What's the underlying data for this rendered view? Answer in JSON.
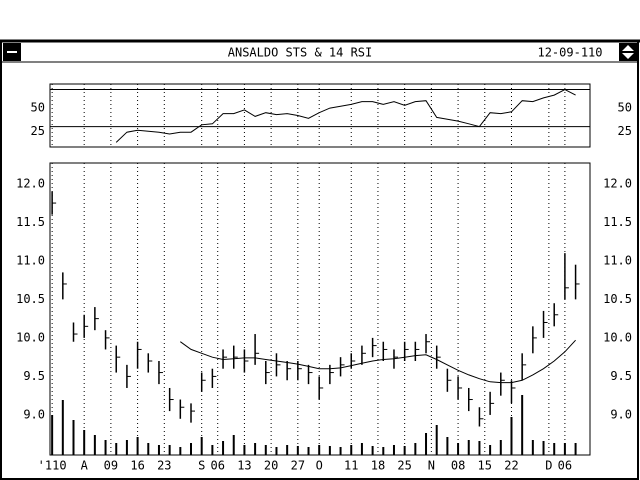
{
  "window": {
    "title": "ANSALDO STS & 14 RSI",
    "date": "12-09-110"
  },
  "chart_data": [
    {
      "type": "line",
      "x": [
        0,
        2,
        4,
        6,
        8,
        10,
        12,
        14,
        16,
        18,
        20,
        22,
        24,
        26,
        28,
        30,
        32,
        34,
        36,
        38,
        40,
        42,
        44,
        46,
        48,
        50,
        52,
        54,
        56,
        58,
        60,
        62,
        64,
        66,
        68,
        70,
        72,
        74,
        76,
        78,
        80,
        82,
        84,
        86,
        88,
        90,
        92,
        94,
        96,
        98
      ],
      "values": [
        null,
        null,
        null,
        null,
        null,
        null,
        13,
        24,
        26,
        25,
        24,
        22,
        24,
        24,
        32,
        33,
        44,
        44,
        48,
        41,
        45,
        43,
        44,
        42,
        39,
        45,
        50,
        52,
        54,
        57,
        57,
        54,
        57,
        53,
        57,
        58,
        40,
        38,
        36,
        33,
        30,
        45,
        44,
        46,
        58,
        57,
        61,
        64,
        70,
        64
      ],
      "color": "#000000",
      "xlim": [
        -0.4,
        100.7
      ],
      "ylim": [
        8,
        76
      ],
      "yticks": [
        25,
        50
      ],
      "hlines": [
        70,
        30
      ]
    },
    {
      "type": "hlc",
      "x": [
        0,
        2,
        4,
        6,
        8,
        10,
        12,
        14,
        16,
        18,
        20,
        22,
        24,
        26,
        28,
        30,
        32,
        34,
        36,
        38,
        40,
        42,
        44,
        46,
        48,
        50,
        52,
        54,
        56,
        58,
        60,
        62,
        64,
        66,
        68,
        70,
        72,
        74,
        76,
        78,
        80,
        82,
        84,
        86,
        88,
        90,
        92,
        94,
        96,
        98
      ],
      "high": [
        11.9,
        10.85,
        10.2,
        10.3,
        10.4,
        10.1,
        9.9,
        9.65,
        9.95,
        9.8,
        9.7,
        9.35,
        9.2,
        9.15,
        9.55,
        9.6,
        9.85,
        9.9,
        9.85,
        10.05,
        9.7,
        9.8,
        9.7,
        9.7,
        9.65,
        9.5,
        9.65,
        9.75,
        9.8,
        9.9,
        10.0,
        9.95,
        9.85,
        9.95,
        9.95,
        10.05,
        9.9,
        9.6,
        9.5,
        9.35,
        9.1,
        9.3,
        9.55,
        9.45,
        9.8,
        10.15,
        10.35,
        10.45,
        11.1,
        10.95
      ],
      "low": [
        11.6,
        10.5,
        9.95,
        10.0,
        10.1,
        9.85,
        9.55,
        9.35,
        9.6,
        9.55,
        9.4,
        9.05,
        8.95,
        8.9,
        9.3,
        9.35,
        9.6,
        9.6,
        9.55,
        9.65,
        9.4,
        9.5,
        9.45,
        9.45,
        9.4,
        9.2,
        9.4,
        9.5,
        9.6,
        9.65,
        9.75,
        9.7,
        9.6,
        9.7,
        9.7,
        9.8,
        9.6,
        9.3,
        9.2,
        9.05,
        8.85,
        9.0,
        9.25,
        9.15,
        9.45,
        9.8,
        10.0,
        10.15,
        10.5,
        10.5
      ],
      "close": [
        11.75,
        10.7,
        10.05,
        10.15,
        10.25,
        10.0,
        9.75,
        9.5,
        9.85,
        9.7,
        9.55,
        9.2,
        9.1,
        9.05,
        9.45,
        9.5,
        9.75,
        9.75,
        9.7,
        9.8,
        9.55,
        9.65,
        9.6,
        9.6,
        9.55,
        9.35,
        9.55,
        9.65,
        9.7,
        9.8,
        9.9,
        9.85,
        9.75,
        9.85,
        9.85,
        9.95,
        9.75,
        9.45,
        9.35,
        9.2,
        8.95,
        9.15,
        9.45,
        9.35,
        9.65,
        10.0,
        10.2,
        10.3,
        10.65,
        10.7
      ],
      "ma": [
        null,
        null,
        null,
        null,
        null,
        null,
        null,
        null,
        null,
        null,
        null,
        null,
        9.95,
        9.85,
        9.8,
        9.75,
        9.72,
        9.73,
        9.74,
        9.74,
        9.72,
        9.7,
        9.68,
        9.66,
        9.63,
        9.6,
        9.6,
        9.61,
        9.64,
        9.67,
        9.7,
        9.72,
        9.73,
        9.75,
        9.77,
        9.78,
        9.72,
        9.65,
        9.58,
        9.52,
        9.47,
        9.43,
        9.42,
        9.42,
        9.45,
        9.52,
        9.6,
        9.7,
        9.82,
        9.97
      ],
      "volume": [
        40,
        55,
        35,
        25,
        20,
        15,
        12,
        15,
        18,
        12,
        10,
        10,
        8,
        12,
        18,
        10,
        14,
        20,
        10,
        12,
        10,
        8,
        10,
        9,
        8,
        10,
        9,
        8,
        10,
        12,
        9,
        8,
        10,
        9,
        12,
        22,
        30,
        18,
        12,
        15,
        14,
        10,
        15,
        38,
        60,
        15,
        14,
        12,
        12,
        12
      ],
      "vlim": [
        0,
        100
      ],
      "color": "#000000",
      "xlim": [
        -0.4,
        100.7
      ],
      "ylim": [
        8.48,
        12.27
      ],
      "yticks": [
        {
          "value": 9,
          "label": "9.0"
        },
        9.5,
        {
          "value": 10,
          "label": "10.0"
        },
        10.5,
        {
          "value": 11,
          "label": "11.0"
        },
        11.5,
        {
          "value": 12,
          "label": "12.0"
        }
      ],
      "xticks": [
        {
          "value": 0,
          "label": "'110"
        },
        {
          "value": 6,
          "label": "A"
        },
        {
          "value": 11,
          "label": "09"
        },
        {
          "value": 16,
          "label": "16"
        },
        {
          "value": 21,
          "label": "23"
        },
        {
          "value": 28,
          "label": "S"
        },
        {
          "value": 31,
          "label": "06"
        },
        {
          "value": 36,
          "label": "13"
        },
        {
          "value": 41,
          "label": "20"
        },
        {
          "value": 46,
          "label": "27"
        },
        {
          "value": 50,
          "label": "O"
        },
        {
          "value": 56,
          "label": "11"
        },
        {
          "value": 61,
          "label": "18"
        },
        {
          "value": 66,
          "label": "25"
        },
        {
          "value": 71,
          "label": "N"
        },
        {
          "value": 76,
          "label": "08"
        },
        {
          "value": 81,
          "label": "15"
        },
        {
          "value": 86,
          "label": "22"
        },
        {
          "value": 93,
          "label": "D"
        },
        {
          "value": 96,
          "label": "06"
        }
      ],
      "grid": true
    }
  ]
}
